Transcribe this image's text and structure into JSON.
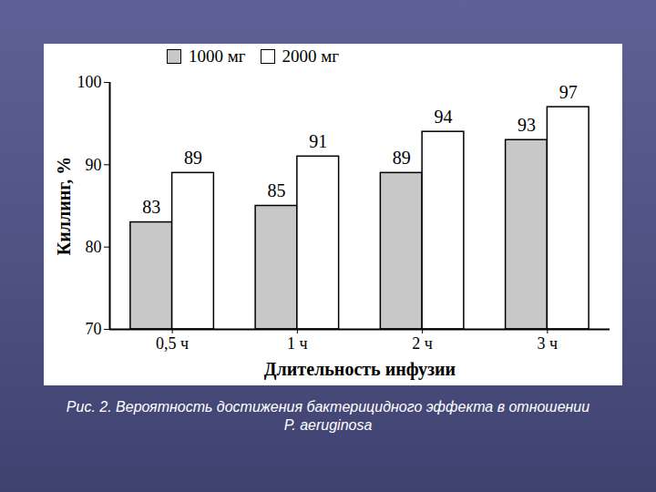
{
  "chart_data": {
    "type": "bar",
    "title": "Рис. 2. Вероятность достижения бактерицидного эффекта в отношении P. aeruginosa",
    "x_label": "Длительность инфузии",
    "y_label": "Киллинг, %",
    "categories": [
      "0,5 ч",
      "1 ч",
      "2 ч",
      "3 ч"
    ],
    "series": [
      {
        "name": "1000 мг",
        "color": "#c8c8c8",
        "values": [
          83,
          85,
          89,
          93
        ]
      },
      {
        "name": "2000 мг",
        "color": "#ffffff",
        "values": [
          89,
          91,
          94,
          97
        ]
      }
    ],
    "ylim": [
      70,
      100
    ],
    "yticks": [
      70,
      80,
      90,
      100
    ],
    "grid": false,
    "legend": "top",
    "data_labels": true
  }
}
